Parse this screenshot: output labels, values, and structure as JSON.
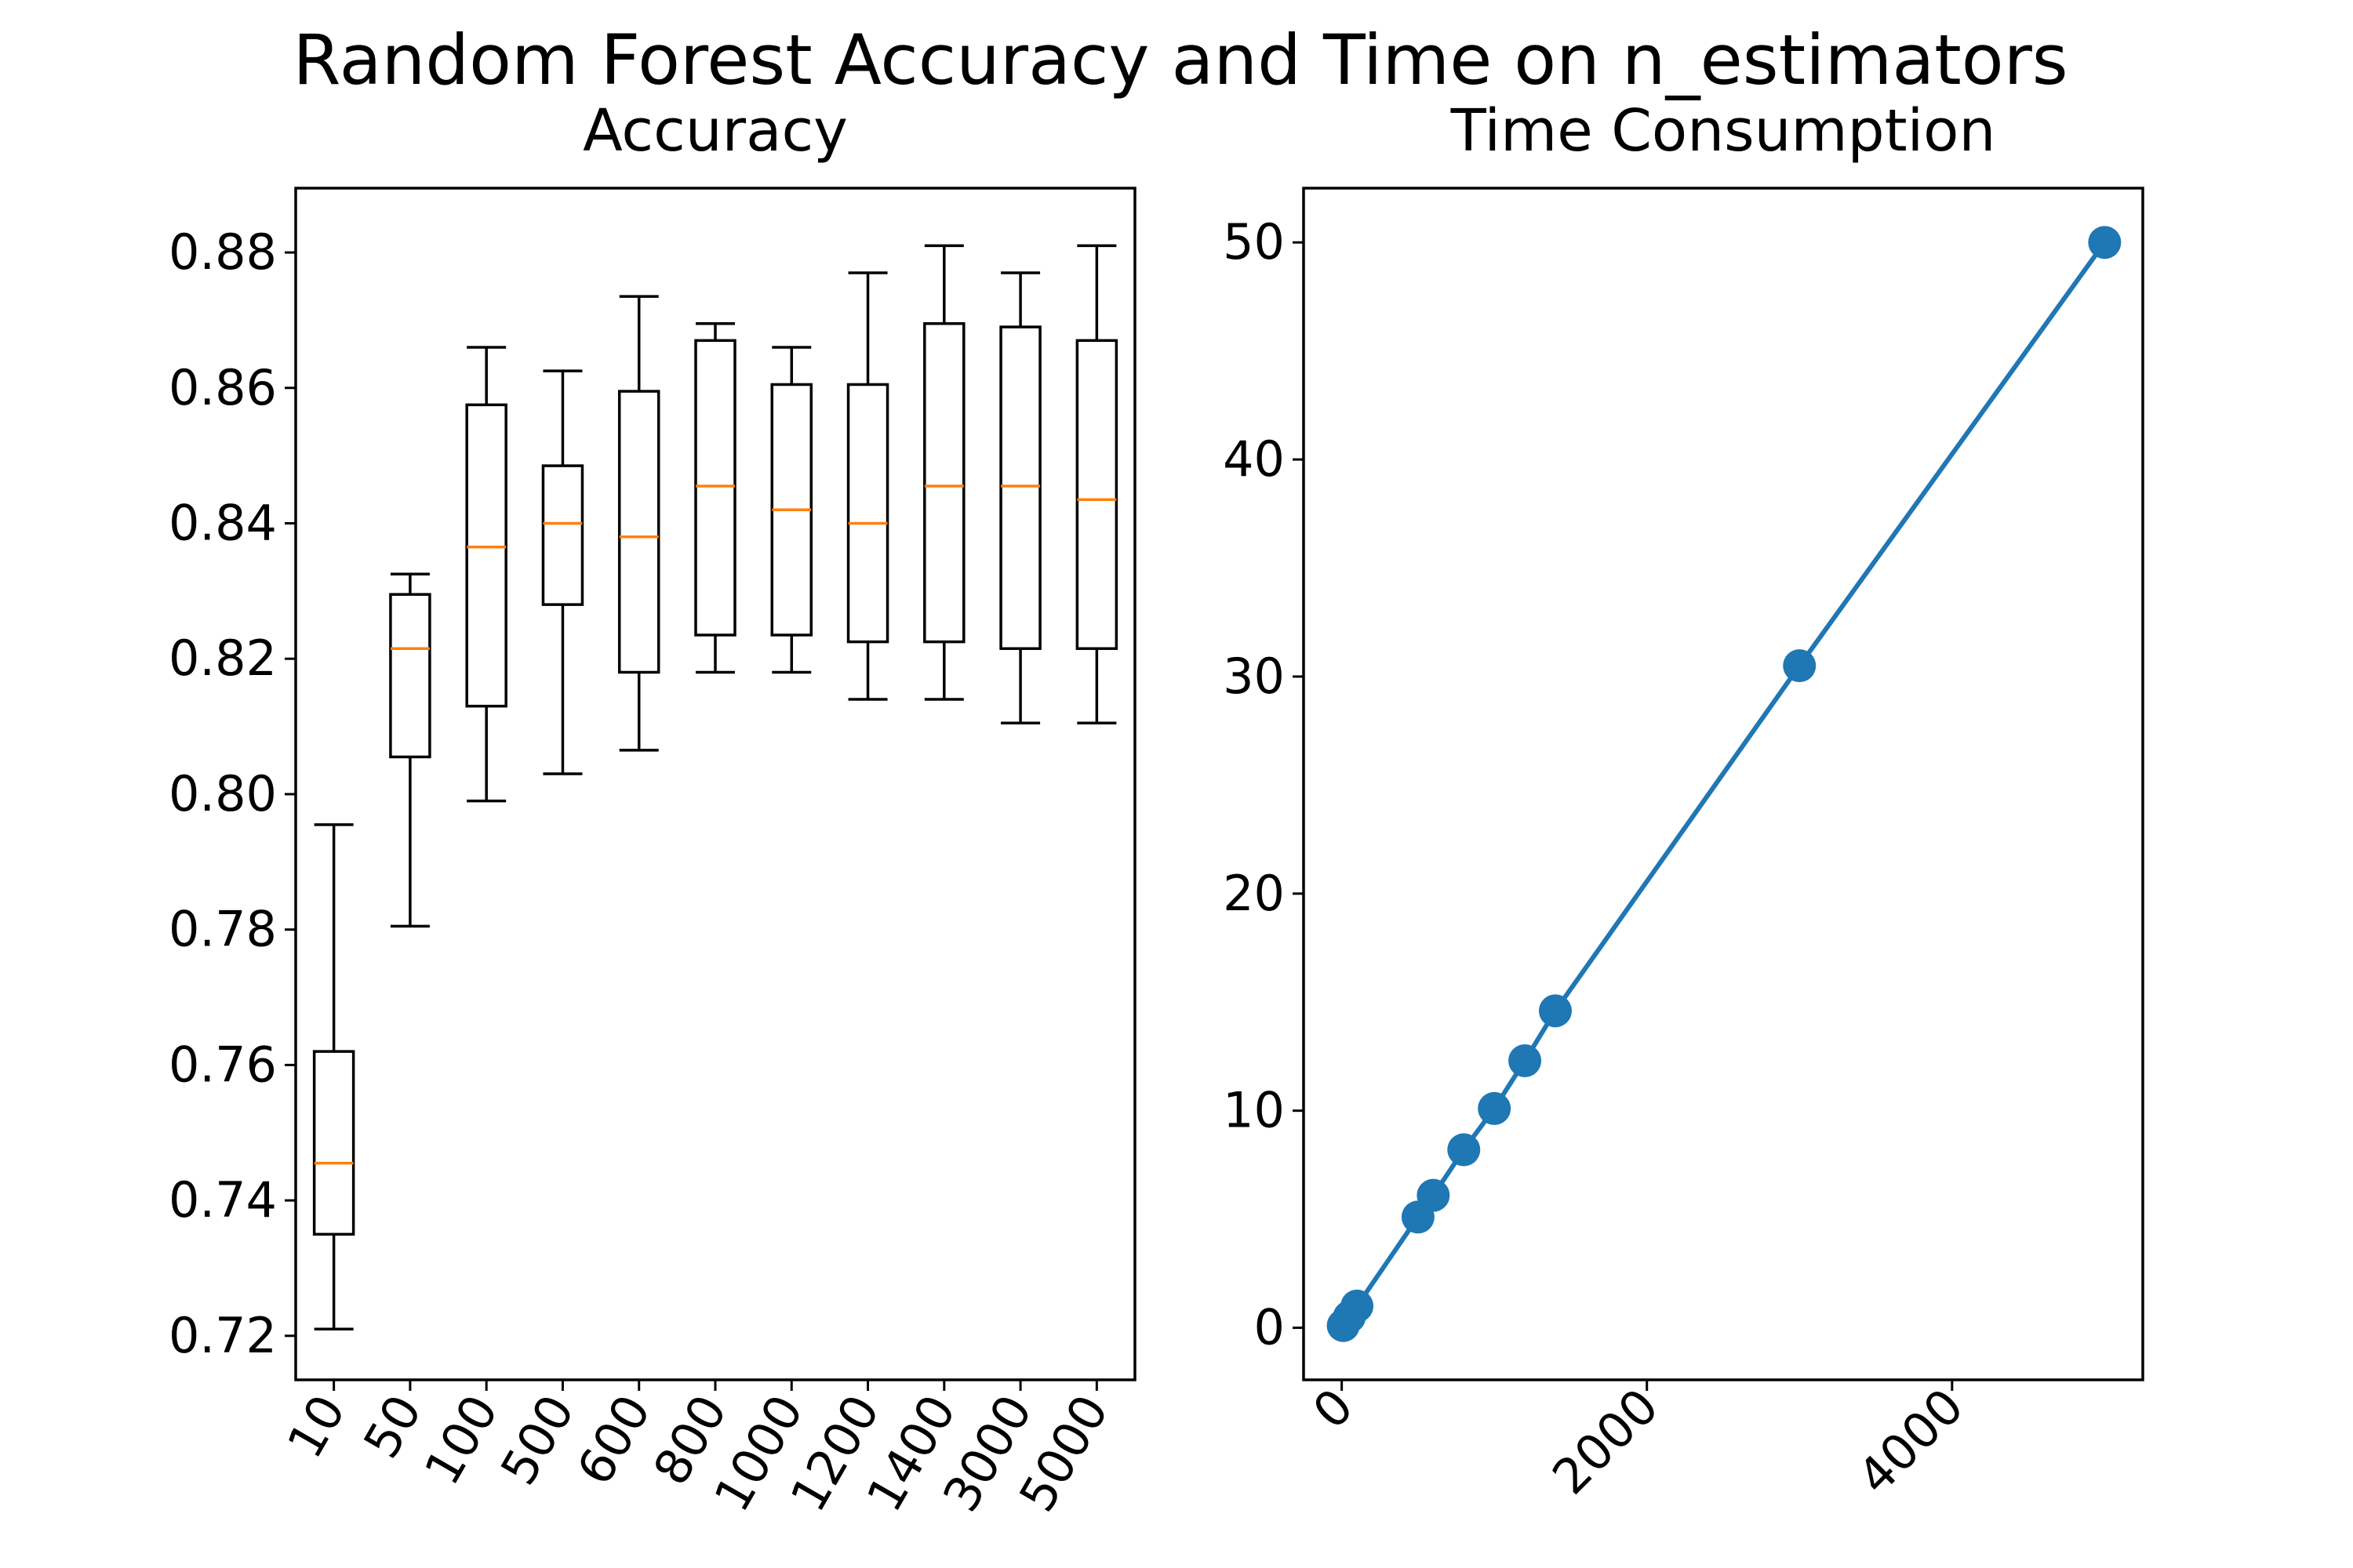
{
  "suptitle": "Random Forest Accuracy and Time on n_estimators",
  "chart_data": [
    {
      "type": "box",
      "title": "Accuracy",
      "xlabel": "",
      "ylabel": "",
      "categories": [
        "10",
        "50",
        "100",
        "500",
        "600",
        "800",
        "1000",
        "1200",
        "1400",
        "3000",
        "5000"
      ],
      "boxes": [
        {
          "whisker_low": 0.721,
          "q1": 0.735,
          "median": 0.7455,
          "q3": 0.762,
          "whisker_high": 0.7955
        },
        {
          "whisker_low": 0.7805,
          "q1": 0.8055,
          "median": 0.8215,
          "q3": 0.8295,
          "whisker_high": 0.8325
        },
        {
          "whisker_low": 0.799,
          "q1": 0.813,
          "median": 0.8365,
          "q3": 0.8575,
          "whisker_high": 0.866
        },
        {
          "whisker_low": 0.803,
          "q1": 0.828,
          "median": 0.84,
          "q3": 0.8485,
          "whisker_high": 0.8625
        },
        {
          "whisker_low": 0.8065,
          "q1": 0.818,
          "median": 0.838,
          "q3": 0.8595,
          "whisker_high": 0.8735
        },
        {
          "whisker_low": 0.818,
          "q1": 0.8235,
          "median": 0.8455,
          "q3": 0.867,
          "whisker_high": 0.8695
        },
        {
          "whisker_low": 0.818,
          "q1": 0.8235,
          "median": 0.842,
          "q3": 0.8605,
          "whisker_high": 0.866
        },
        {
          "whisker_low": 0.814,
          "q1": 0.8225,
          "median": 0.84,
          "q3": 0.8605,
          "whisker_high": 0.877
        },
        {
          "whisker_low": 0.814,
          "q1": 0.8225,
          "median": 0.8455,
          "q3": 0.8695,
          "whisker_high": 0.881
        },
        {
          "whisker_low": 0.8105,
          "q1": 0.8215,
          "median": 0.8455,
          "q3": 0.869,
          "whisker_high": 0.877
        },
        {
          "whisker_low": 0.8105,
          "q1": 0.8215,
          "median": 0.8435,
          "q3": 0.867,
          "whisker_high": 0.881
        }
      ],
      "ylim": [
        0.7135,
        0.8895
      ],
      "yticks": [
        "0.72",
        "0.74",
        "0.76",
        "0.78",
        "0.80",
        "0.82",
        "0.84",
        "0.86",
        "0.88"
      ],
      "ytick_values": [
        0.72,
        0.74,
        0.76,
        0.78,
        0.8,
        0.82,
        0.84,
        0.86,
        0.88
      ],
      "box_color": "#000000",
      "median_color": "#ff7f0e",
      "grid": false
    },
    {
      "type": "line",
      "title": "Time Consumption",
      "xlabel": "",
      "ylabel": "",
      "x": [
        10,
        50,
        100,
        500,
        600,
        800,
        1000,
        1200,
        1400,
        3000,
        5000
      ],
      "y": [
        0.1,
        0.5,
        1.0,
        5.1,
        6.1,
        8.2,
        10.1,
        12.3,
        14.6,
        30.5,
        50.0
      ],
      "xlim": [
        -250,
        5250
      ],
      "ylim": [
        -2.4,
        52.5
      ],
      "xticks": [
        "0",
        "2000",
        "4000"
      ],
      "xtick_values": [
        0,
        2000,
        4000
      ],
      "yticks": [
        "0",
        "10",
        "20",
        "30",
        "40",
        "50"
      ],
      "ytick_values": [
        0,
        10,
        20,
        30,
        40,
        50
      ],
      "color": "#1f77b4",
      "marker": "circle",
      "grid": false
    }
  ]
}
